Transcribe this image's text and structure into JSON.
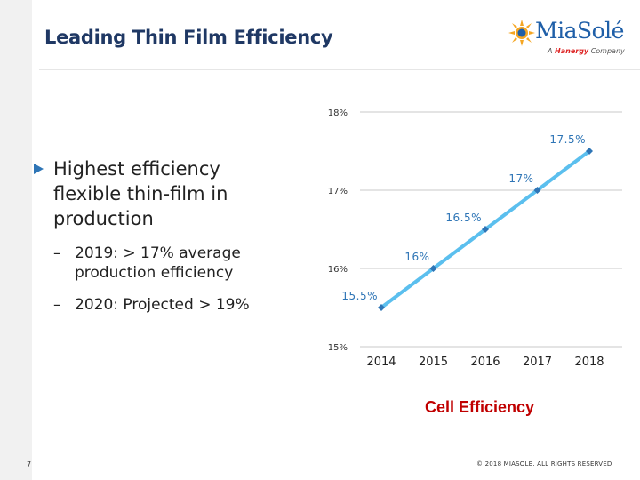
{
  "slide": {
    "title": "Leading Thin Film Efficiency",
    "page_number": "7",
    "copyright": "© 2018 MIASOLE. ALL RIGHTS RESERVED"
  },
  "logo": {
    "name": "MiaSolé",
    "tagline_prefix": "A",
    "tagline_brand": "Hanergy",
    "tagline_suffix": "Company"
  },
  "bullets": {
    "main": "Highest efficiency flexible thin-film in production",
    "sub": [
      {
        "dash": "–",
        "text": "2019: > 17% average production efficiency"
      },
      {
        "dash": "–",
        "text": "2020: Projected > 19%"
      }
    ]
  },
  "colors": {
    "line": "#5bbfee",
    "marker": "#2e75b6",
    "title": "#1f3864",
    "caption": "#c00000",
    "gridline": "#c8c8c8",
    "bullet_arrow": "#2e75b6"
  },
  "chart_data": {
    "type": "line",
    "title": "",
    "xlabel": "Cell Efficiency",
    "ylabel": "",
    "categories": [
      "2014",
      "2015",
      "2016",
      "2017",
      "2018"
    ],
    "series": [
      {
        "values": [
          15.5,
          16.0,
          16.5,
          17.0,
          17.5
        ],
        "labels": [
          "15.5%",
          "16%",
          "16.5%",
          "17%",
          "17.5%"
        ]
      }
    ],
    "ylim": [
      15,
      18
    ],
    "yticks": [
      15,
      16,
      17,
      18
    ],
    "ytick_labels": [
      "15%",
      "16%",
      "17%",
      "18%"
    ],
    "grid": true,
    "legend": "none"
  }
}
